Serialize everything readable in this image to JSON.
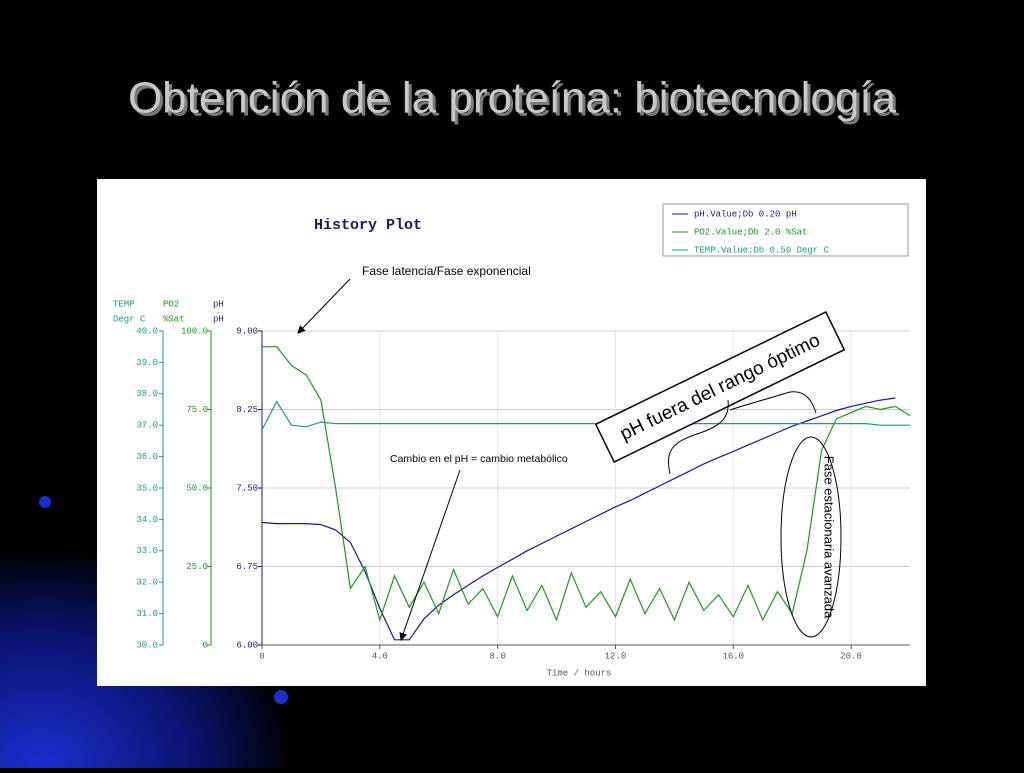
{
  "slide": {
    "title": "Obtención de la proteína: biotecnología"
  },
  "chart_data": {
    "type": "line",
    "title": "History Plot",
    "xlabel": "Time / hours",
    "xlim": [
      0,
      22
    ],
    "xticks": [
      0,
      {
        "value": 4,
        "label": "4.0"
      },
      {
        "value": 8,
        "label": "8.0"
      },
      {
        "value": 12,
        "label": "12.0"
      },
      {
        "value": 16,
        "label": "16.0"
      },
      {
        "value": 20,
        "label": "20.0"
      }
    ],
    "ylabel": [
      "pH",
      "pH"
    ],
    "ylim": [
      6,
      9
    ],
    "yticks": [
      {
        "value": 6,
        "label": "6.00"
      },
      {
        "value": 6.75,
        "label": "6.75"
      },
      {
        "value": 7.5,
        "label": "7.50"
      },
      {
        "value": 8.25,
        "label": "8.25"
      },
      {
        "value": 9,
        "label": "9.00"
      }
    ],
    "y2label": [
      "PO2",
      "%Sat"
    ],
    "y2lim": [
      0,
      100
    ],
    "y2ticks": [
      0,
      {
        "value": 25,
        "label": "25.0"
      },
      {
        "value": 50,
        "label": "50.0"
      },
      {
        "value": 75,
        "label": "75.0"
      },
      {
        "value": 100,
        "label": "100.0"
      }
    ],
    "y3label": [
      "TEMP",
      "Degr C"
    ],
    "y3lim": [
      30,
      40
    ],
    "y3ticks": [
      {
        "value": 30,
        "label": "30.0"
      },
      {
        "value": 31,
        "label": "31.0"
      },
      {
        "value": 32,
        "label": "32.0"
      },
      {
        "value": 33,
        "label": "33.0"
      },
      {
        "value": 34,
        "label": "34.0"
      },
      {
        "value": 35,
        "label": "35.0"
      },
      {
        "value": 36,
        "label": "36.0"
      },
      {
        "value": 37,
        "label": "37.0"
      },
      {
        "value": 38,
        "label": "38.0"
      },
      {
        "value": 39,
        "label": "39.0"
      },
      {
        "value": 40,
        "label": "40.0"
      }
    ],
    "grid": true,
    "legend": "top-right",
    "x": [
      0,
      0.5,
      1,
      1.5,
      2,
      2.5,
      3,
      3.5,
      4,
      4.5,
      5,
      5.5,
      6,
      6.5,
      7,
      7.5,
      8,
      8.5,
      9,
      9.5,
      10,
      10.5,
      11,
      11.5,
      12,
      12.5,
      13,
      13.5,
      14,
      14.5,
      15,
      15.5,
      16,
      16.5,
      17,
      17.5,
      18,
      18.5,
      19,
      19.5,
      20,
      20.5,
      21,
      21.5,
      22
    ],
    "series": [
      {
        "name": "pH.Value;Db 0.20 pH",
        "color": "#1a1a80",
        "axis": "y",
        "values": [
          7.17,
          7.16,
          7.16,
          7.16,
          7.15,
          7.1,
          6.98,
          6.7,
          6.35,
          6.05,
          6.05,
          6.25,
          6.38,
          6.48,
          6.57,
          6.66,
          6.74,
          6.82,
          6.9,
          6.97,
          7.04,
          7.11,
          7.18,
          7.25,
          7.32,
          7.38,
          7.45,
          7.52,
          7.59,
          7.66,
          7.73,
          7.79,
          7.85,
          7.91,
          7.97,
          8.03,
          8.09,
          8.14,
          8.19,
          8.24,
          8.28,
          8.31,
          8.34,
          8.36,
          null
        ]
      },
      {
        "name": "PO2.Value;Db 2.0 %Sat",
        "color": "#1a9a1a",
        "axis": "y2",
        "values": [
          95,
          95,
          89,
          86,
          78,
          50,
          18,
          25,
          8,
          22,
          12,
          20,
          10,
          24,
          13,
          18,
          9,
          22,
          11,
          19,
          8,
          23,
          12,
          17,
          9,
          21,
          10,
          18,
          8,
          20,
          11,
          16,
          9,
          19,
          8,
          17,
          10,
          30,
          62,
          72,
          74,
          76,
          75,
          76,
          73
        ]
      },
      {
        "name": "TEMP.Value;Db 0.50 Degr C",
        "color": "#1a9a8a",
        "axis": "y3",
        "values": [
          36.85,
          37.75,
          37.0,
          36.95,
          37.1,
          37.05,
          37.05,
          37.05,
          37.05,
          37.05,
          37.05,
          37.05,
          37.05,
          37.05,
          37.05,
          37.05,
          37.05,
          37.05,
          37.05,
          37.05,
          37.05,
          37.05,
          37.05,
          37.05,
          37.05,
          37.05,
          37.05,
          37.05,
          37.05,
          37.05,
          37.05,
          37.05,
          37.05,
          37.05,
          37.05,
          37.05,
          37.05,
          37.05,
          37.05,
          37.05,
          37.05,
          37.05,
          37.0,
          37.0,
          37.0
        ]
      }
    ],
    "annotations": [
      "Fase latencia/Fase exponencial",
      "Cambio en el pH = cambio metabólico",
      "pH fuera del rango óptimo",
      "Fase estacionaria avanzada"
    ]
  }
}
